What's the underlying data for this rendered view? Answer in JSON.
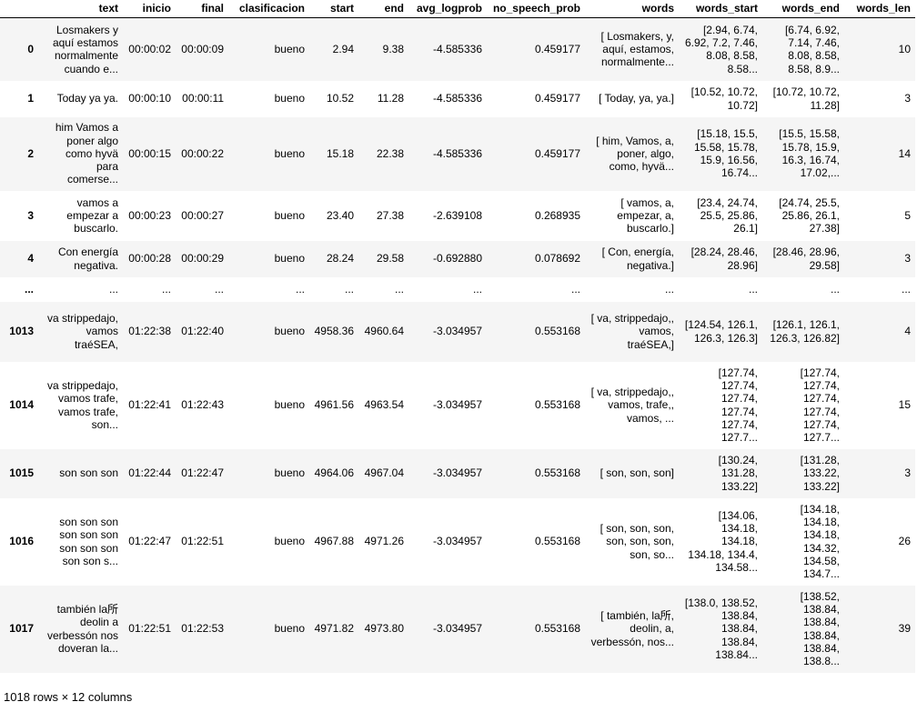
{
  "columns": [
    "text",
    "inicio",
    "final",
    "clasificacion",
    "start",
    "end",
    "avg_logprob",
    "no_speech_prob",
    "words",
    "words_start",
    "words_end",
    "words_len"
  ],
  "rows": [
    {
      "idx": "0",
      "h": 69,
      "cells": [
        "Losmakers y aquí estamos normalmente cuando e...",
        "00:00:02",
        "00:00:09",
        "bueno",
        "2.94",
        "9.38",
        "-4.585336",
        "0.459177",
        "[ Losmakers, y, aquí, estamos, normalmente...",
        "[2.94, 6.74, 6.92, 7.2, 7.46, 8.08, 8.58, 8.58...",
        "[6.74, 6.92, 7.14, 7.46, 8.08, 8.58, 8.58, 8.9...",
        "10"
      ]
    },
    {
      "idx": "1",
      "h": 40,
      "cells": [
        "Today ya ya.",
        "00:00:10",
        "00:00:11",
        "bueno",
        "10.52",
        "11.28",
        "-4.585336",
        "0.459177",
        "[ Today, ya, ya.]",
        "[10.52, 10.72, 10.72]",
        "[10.72, 10.72, 11.28]",
        "3"
      ]
    },
    {
      "idx": "2",
      "h": 81,
      "cells": [
        "him Vamos a poner algo como hyvä para comerse...",
        "00:00:15",
        "00:00:22",
        "bueno",
        "15.18",
        "22.38",
        "-4.585336",
        "0.459177",
        "[ him, Vamos, a, poner, algo, como, hyvä...",
        "[15.18, 15.5, 15.58, 15.78, 15.9, 16.56, 16.74...",
        "[15.5, 15.58, 15.78, 15.9, 16.3, 16.74, 17.02,...",
        "14"
      ]
    },
    {
      "idx": "3",
      "h": 55,
      "cells": [
        "vamos a empezar a buscarlo.",
        "00:00:23",
        "00:00:27",
        "bueno",
        "23.40",
        "27.38",
        "-2.639108",
        "0.268935",
        "[ vamos, a, empezar, a, buscarlo.]",
        "[23.4, 24.74, 25.5, 25.86, 26.1]",
        "[24.74, 25.5, 25.86, 26.1, 27.38]",
        "5"
      ]
    },
    {
      "idx": "4",
      "h": 40,
      "cells": [
        "Con energía negativa.",
        "00:00:28",
        "00:00:29",
        "bueno",
        "28.24",
        "29.58",
        "-0.692880",
        "0.078692",
        "[ Con, energía, negativa.]",
        "[28.24, 28.46, 28.96]",
        "[28.46, 28.96, 29.58]",
        "3"
      ]
    },
    {
      "idx": "...",
      "h": 27,
      "cells": [
        "...",
        "...",
        "...",
        "...",
        "...",
        "...",
        "...",
        "...",
        "...",
        "...",
        "...",
        "..."
      ]
    },
    {
      "idx": "1013",
      "h": 66,
      "cells": [
        "va strippedajo, vamos traéSEA,",
        "01:22:38",
        "01:22:40",
        "bueno",
        "4958.36",
        "4960.64",
        "-3.034957",
        "0.553168",
        "[ va, strippedajo,, vamos, traéSEA,]",
        "[124.54, 126.1, 126.3, 126.3]",
        "[126.1, 126.1, 126.3, 126.82]",
        "4"
      ]
    },
    {
      "idx": "1014",
      "h": 96,
      "cells": [
        "va strippedajo, vamos trafe, vamos trafe, son...",
        "01:22:41",
        "01:22:43",
        "bueno",
        "4961.56",
        "4963.54",
        "-3.034957",
        "0.553168",
        "[ va, strippedajo,, vamos, trafe,, vamos, ...",
        "[127.74, 127.74, 127.74, 127.74, 127.74, 127.7...",
        "[127.74, 127.74, 127.74, 127.74, 127.74, 127.7...",
        "15"
      ]
    },
    {
      "idx": "1015",
      "h": 54,
      "cells": [
        "son son son",
        "01:22:44",
        "01:22:47",
        "bueno",
        "4964.06",
        "4967.04",
        "-3.034957",
        "0.553168",
        "[ son, son, son]",
        "[130.24, 131.28, 133.22]",
        "[131.28, 133.22, 133.22]",
        "3"
      ]
    },
    {
      "idx": "1016",
      "h": 96,
      "cells": [
        "son son son son son son son son son son son s...",
        "01:22:47",
        "01:22:51",
        "bueno",
        "4967.88",
        "4971.26",
        "-3.034957",
        "0.553168",
        "[ son, son, son, son, son, son, son, so...",
        "[134.06, 134.18, 134.18, 134.18, 134.4, 134.58...",
        "[134.18, 134.18, 134.18, 134.32, 134.58, 134.7...",
        "26"
      ]
    },
    {
      "idx": "1017",
      "h": 96,
      "cells": [
        "también la所 deolin a verbessón nos doveran la...",
        "01:22:51",
        "01:22:53",
        "bueno",
        "4971.82",
        "4973.80",
        "-3.034957",
        "0.553168",
        "[ también, la所, deolin, a, verbessón, nos...",
        "[138.0, 138.52, 138.84, 138.84, 138.84, 138.84...",
        "[138.52, 138.84, 138.84, 138.84, 138.84, 138.8...",
        "39"
      ]
    }
  ],
  "footer": "1018 rows × 12 columns"
}
